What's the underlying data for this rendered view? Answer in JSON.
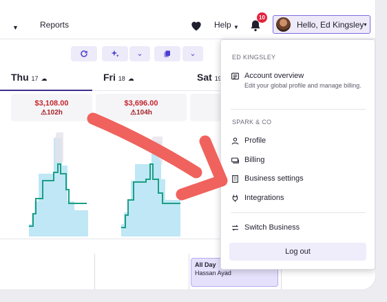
{
  "nav": {
    "reports_label": "Reports",
    "help_label": "Help",
    "notifications_count": "10",
    "user_greeting": "Hello, Ed Kingsley"
  },
  "days": [
    {
      "name": "Thu",
      "date": "17",
      "amount": "$3,108.00",
      "hours": "102h"
    },
    {
      "name": "Fri",
      "date": "18",
      "amount": "$3,696.00",
      "hours": "104h"
    },
    {
      "name": "Sat",
      "date": "19"
    }
  ],
  "calendar": {
    "allday_title": "All Day",
    "allday_name": "Hassan Ayad"
  },
  "menu": {
    "user_section": "ED KINGSLEY",
    "account_overview": "Account overview",
    "account_overview_desc": "Edit your global profile and manage billing.",
    "business_section": "SPARK & CO",
    "items": [
      "Profile",
      "Billing",
      "Business settings",
      "Integrations"
    ],
    "switch_business": "Switch Business",
    "logout": "Log out"
  },
  "colors": {
    "accent": "#4a3fd0",
    "alert": "#c4262e",
    "annotation_arrow": "#f0625d",
    "chart_fill": "#bfe7f5",
    "chart_line": "#1a9e84"
  },
  "icons": {
    "heart": "heart-icon",
    "bell": "bell-icon",
    "refresh": "refresh-icon",
    "sparkle": "sparkle-icon",
    "copy": "copy-icon"
  }
}
